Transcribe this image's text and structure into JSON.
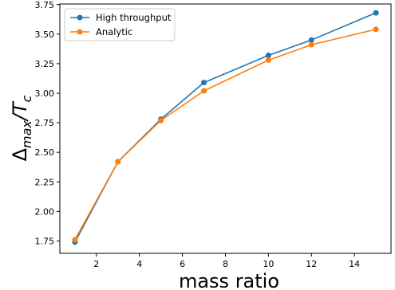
{
  "chart_data": {
    "type": "line",
    "title": "",
    "xlabel": "mass ratio",
    "ylabel": "Δmax/Tc",
    "ylabel_parts": {
      "delta": "Δ",
      "max": "max",
      "slash": "/T",
      "c": "c"
    },
    "x": [
      1,
      3,
      5,
      7,
      10,
      12,
      15
    ],
    "series": [
      {
        "name": "High throughput",
        "color": "#1f77b4",
        "values": [
          1.74,
          2.42,
          2.78,
          3.09,
          3.32,
          3.45,
          3.68
        ]
      },
      {
        "name": "Analytic",
        "color": "#ff7f0e",
        "values": [
          1.76,
          2.42,
          2.77,
          3.02,
          3.28,
          3.41,
          3.54
        ]
      }
    ],
    "xlim": [
      0.3,
      15.7
    ],
    "ylim": [
      1.645,
      3.755
    ],
    "xticks": [
      2,
      4,
      6,
      8,
      10,
      12,
      14
    ],
    "yticks": [
      1.75,
      2.0,
      2.25,
      2.5,
      2.75,
      3.0,
      3.25,
      3.5,
      3.75
    ],
    "xtick_labels": [
      "2",
      "4",
      "6",
      "8",
      "10",
      "12",
      "14"
    ],
    "ytick_labels": [
      "1.75",
      "2.00",
      "2.25",
      "2.50",
      "2.75",
      "3.00",
      "3.25",
      "3.50",
      "3.75"
    ],
    "grid": false,
    "legend_position": "upper-left"
  }
}
